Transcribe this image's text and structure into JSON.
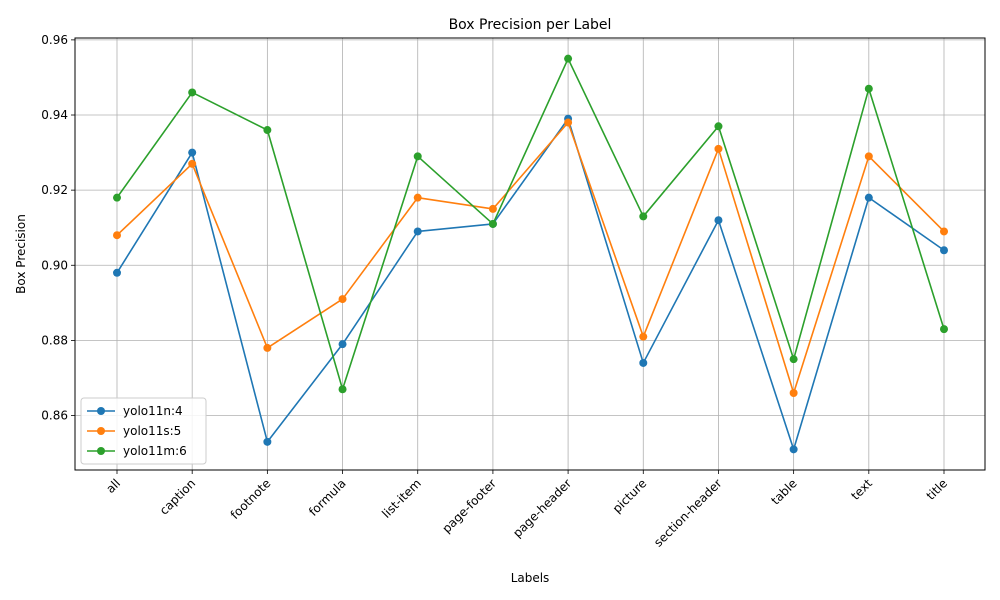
{
  "chart_data": {
    "type": "line",
    "title": "Box Precision per Label",
    "xlabel": "Labels",
    "ylabel": "Box Precision",
    "categories": [
      "all",
      "caption",
      "footnote",
      "formula",
      "list-item",
      "page-footer",
      "page-header",
      "picture",
      "section-header",
      "table",
      "text",
      "title"
    ],
    "ylim": [
      0.8455,
      0.9605
    ],
    "yticks": [
      0.86,
      0.88,
      0.9,
      0.92,
      0.94,
      0.96
    ],
    "ytick_labels": [
      "0.86",
      "0.88",
      "0.90",
      "0.92",
      "0.94",
      "0.96"
    ],
    "grid": true,
    "legend_position": "lower-left",
    "series": [
      {
        "name": "yolo11n:4",
        "color": "#1f77b4",
        "values": [
          0.898,
          0.93,
          0.853,
          0.879,
          0.909,
          0.911,
          0.939,
          0.874,
          0.912,
          0.851,
          0.918,
          0.904
        ]
      },
      {
        "name": "yolo11s:5",
        "color": "#ff7f0e",
        "values": [
          0.908,
          0.927,
          0.878,
          0.891,
          0.918,
          0.915,
          0.938,
          0.881,
          0.931,
          0.866,
          0.929,
          0.909
        ]
      },
      {
        "name": "yolo11m:6",
        "color": "#2ca02c",
        "values": [
          0.918,
          0.946,
          0.936,
          0.867,
          0.929,
          0.911,
          0.955,
          0.913,
          0.937,
          0.875,
          0.947,
          0.883
        ]
      }
    ]
  }
}
